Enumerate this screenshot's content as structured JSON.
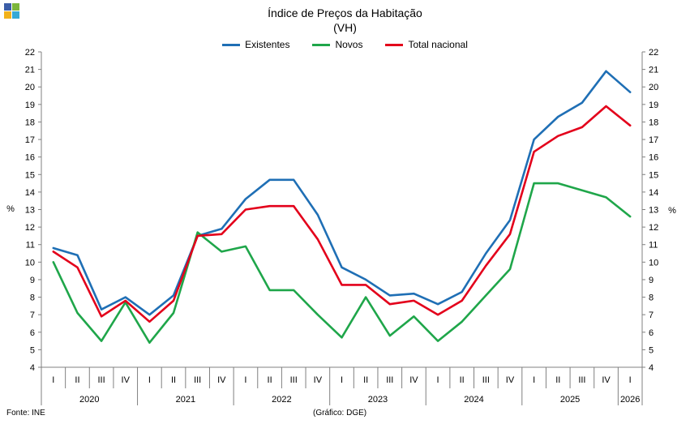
{
  "chart_data": {
    "type": "line",
    "title": "Índice de Preços da Habitação",
    "subtitle": "(VH)",
    "ylabel": "%",
    "ylim": [
      4,
      22
    ],
    "yticks": [
      4,
      5,
      6,
      7,
      8,
      9,
      10,
      11,
      12,
      13,
      14,
      15,
      16,
      17,
      18,
      19,
      20,
      21,
      22
    ],
    "grid": false,
    "legend_position": "top-center",
    "quarters": [
      "I",
      "II",
      "III",
      "IV",
      "I",
      "II",
      "III",
      "IV",
      "I",
      "II",
      "III",
      "IV",
      "I",
      "II",
      "III",
      "IV",
      "I",
      "II",
      "III",
      "IV",
      "I",
      "II",
      "III",
      "IV",
      "I"
    ],
    "years": [
      {
        "label": "2020",
        "quarters": 4
      },
      {
        "label": "2021",
        "quarters": 4
      },
      {
        "label": "2022",
        "quarters": 4
      },
      {
        "label": "2023",
        "quarters": 4
      },
      {
        "label": "2024",
        "quarters": 4
      },
      {
        "label": "2025",
        "quarters": 4
      },
      {
        "label": "2026",
        "quarters": 1
      }
    ],
    "series": [
      {
        "name": "Existentes",
        "color": "#1f6fb5",
        "values": [
          10.8,
          10.4,
          7.3,
          8.0,
          7.0,
          8.1,
          11.5,
          11.9,
          13.6,
          14.7,
          14.7,
          12.7,
          9.7,
          9.0,
          8.1,
          8.2,
          7.6,
          8.3,
          10.5,
          12.4,
          17.0,
          18.3,
          19.1,
          20.9,
          19.7
        ]
      },
      {
        "name": "Novos",
        "color": "#1fa64a",
        "values": [
          10.0,
          7.1,
          5.5,
          7.7,
          5.4,
          7.1,
          11.7,
          10.6,
          10.9,
          8.4,
          8.4,
          7.0,
          5.7,
          8.0,
          5.8,
          6.9,
          5.5,
          6.6,
          8.1,
          9.6,
          14.5,
          14.5,
          14.1,
          13.7,
          12.6
        ]
      },
      {
        "name": "Total nacional",
        "color": "#e3001b",
        "values": [
          10.6,
          9.7,
          6.9,
          7.8,
          6.6,
          7.8,
          11.5,
          11.6,
          13.0,
          13.2,
          13.2,
          11.3,
          8.7,
          8.7,
          7.6,
          7.8,
          7.0,
          7.8,
          9.8,
          11.6,
          16.3,
          17.2,
          17.7,
          18.9,
          17.8
        ]
      }
    ]
  },
  "footer": {
    "source": "Fonte: INE",
    "credit": "(Gráfico: DGE)"
  },
  "logo_colors": [
    "#3b5ea8",
    "#7db63c",
    "#f2b21b",
    "#35a9d6"
  ]
}
